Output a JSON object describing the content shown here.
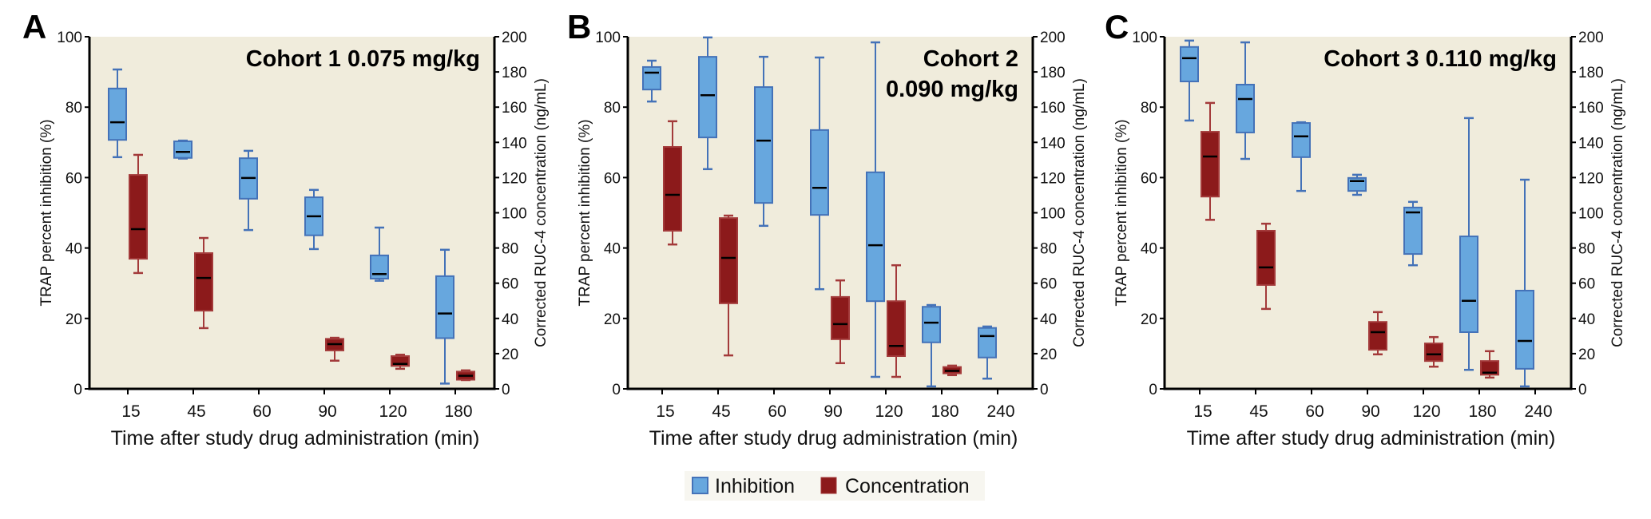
{
  "legend": {
    "items": [
      {
        "label": "Inhibition",
        "series": "inhibition"
      },
      {
        "label": "Concentration",
        "series": "concentration"
      }
    ]
  },
  "colors": {
    "inhibition_fill": "#67A7DE",
    "inhibition_stroke": "#4472B8",
    "concentration_fill": "#8C1A1B",
    "concentration_stroke": "#A33A3A",
    "median": "#000000",
    "plot_background": "#F0ECDC",
    "legend_background": "#F7F6F0"
  },
  "chart_data": [
    {
      "type": "box",
      "panel": "A",
      "title": "Cohort 1 0.075 mg/kg",
      "xlabel": "Time after study drug administration (min)",
      "ylabel": "TRAP percent inhibition (%)",
      "y2label": "Corrected RUC-4 concentration (ng/mL)",
      "ylim": [
        0,
        100
      ],
      "y2lim": [
        0,
        200
      ],
      "yticks": [
        0,
        20,
        40,
        60,
        80,
        100
      ],
      "y2ticks": [
        0,
        20,
        40,
        60,
        80,
        100,
        120,
        140,
        160,
        180,
        200
      ],
      "categories": [
        "15",
        "45",
        "60",
        "90",
        "120",
        "180"
      ],
      "series": [
        {
          "name": "Inhibition",
          "axis": "left",
          "boxes": [
            {
              "category": "15",
              "min": 65.8,
              "q1": 70.7,
              "median": 75.7,
              "q3": 85.3,
              "max": 90.7
            },
            {
              "category": "45",
              "min": 65.4,
              "q1": 65.6,
              "median": 67.3,
              "q3": 70.3,
              "max": 70.5
            },
            {
              "category": "60",
              "min": 45.1,
              "q1": 54.0,
              "median": 59.9,
              "q3": 65.5,
              "max": 67.6
            },
            {
              "category": "90",
              "min": 39.7,
              "q1": 43.6,
              "median": 49.0,
              "q3": 54.4,
              "max": 56.5
            },
            {
              "category": "120",
              "min": 30.7,
              "q1": 31.3,
              "median": 32.6,
              "q3": 37.9,
              "max": 45.8
            },
            {
              "category": "180",
              "min": 1.5,
              "q1": 14.4,
              "median": 21.4,
              "q3": 32.0,
              "max": 39.5
            }
          ]
        },
        {
          "name": "Concentration",
          "axis": "right",
          "boxes": [
            {
              "category": "15",
              "min": 65.8,
              "q1": 73.9,
              "median": 90.7,
              "q3": 121.5,
              "max": 132.9
            },
            {
              "category": "45",
              "min": 34.5,
              "q1": 44.4,
              "median": 63.0,
              "q3": 77.1,
              "max": 85.7
            },
            {
              "category": "90",
              "min": 16.0,
              "q1": 21.8,
              "median": 25.4,
              "q3": 28.4,
              "max": 29.0
            },
            {
              "category": "120",
              "min": 11.4,
              "q1": 13.0,
              "median": 14.2,
              "q3": 18.6,
              "max": 19.4
            },
            {
              "category": "180",
              "min": 5.0,
              "q1": 5.2,
              "median": 7.4,
              "q3": 9.8,
              "max": 10.5
            }
          ]
        }
      ]
    },
    {
      "type": "box",
      "panel": "B",
      "title": "Cohort 2\n0.090 mg/kg",
      "title_lines": [
        "Cohort 2",
        "0.090 mg/kg"
      ],
      "xlabel": "Time after study drug administration (min)",
      "ylabel": "TRAP percent inhibition (%)",
      "y2label": "Corrected RUC-4 concentration (ng/mL)",
      "ylim": [
        0,
        100
      ],
      "y2lim": [
        0,
        200
      ],
      "yticks": [
        0,
        20,
        40,
        60,
        80,
        100
      ],
      "y2ticks": [
        0,
        20,
        40,
        60,
        80,
        100,
        120,
        140,
        160,
        180,
        200
      ],
      "categories": [
        "15",
        "45",
        "60",
        "90",
        "120",
        "180",
        "240"
      ],
      "series": [
        {
          "name": "Inhibition",
          "axis": "left",
          "boxes": [
            {
              "category": "15",
              "min": 81.6,
              "q1": 85.0,
              "median": 89.8,
              "q3": 91.4,
              "max": 93.2
            },
            {
              "category": "45",
              "min": 62.4,
              "q1": 71.4,
              "median": 83.4,
              "q3": 94.3,
              "max": 99.8
            },
            {
              "category": "60",
              "min": 46.3,
              "q1": 52.8,
              "median": 70.5,
              "q3": 85.7,
              "max": 94.3
            },
            {
              "category": "90",
              "min": 28.3,
              "q1": 49.4,
              "median": 57.1,
              "q3": 73.5,
              "max": 94.1
            },
            {
              "category": "120",
              "min": 3.4,
              "q1": 24.9,
              "median": 40.8,
              "q3": 61.5,
              "max": 98.4
            },
            {
              "category": "180",
              "min": 0.7,
              "q1": 13.2,
              "median": 18.8,
              "q3": 23.3,
              "max": 23.8
            },
            {
              "category": "240",
              "min": 2.9,
              "q1": 8.9,
              "median": 15.0,
              "q3": 17.3,
              "max": 17.7
            }
          ]
        },
        {
          "name": "Concentration",
          "axis": "right",
          "boxes": [
            {
              "category": "15",
              "min": 82.0,
              "q1": 89.8,
              "median": 110.2,
              "q3": 137.4,
              "max": 152.0
            },
            {
              "category": "45",
              "min": 19.0,
              "q1": 48.6,
              "median": 74.4,
              "q3": 97.0,
              "max": 98.4
            },
            {
              "category": "90",
              "min": 14.6,
              "q1": 28.2,
              "median": 36.8,
              "q3": 52.2,
              "max": 61.6
            },
            {
              "category": "120",
              "min": 6.8,
              "q1": 18.6,
              "median": 24.4,
              "q3": 49.8,
              "max": 70.2
            },
            {
              "category": "180",
              "min": 7.8,
              "q1": 8.8,
              "median": 10.2,
              "q3": 12.4,
              "max": 13.2
            }
          ]
        }
      ]
    },
    {
      "type": "box",
      "panel": "C",
      "title": "Cohort 3 0.110 mg/kg",
      "xlabel": "Time after study drug administration (min)",
      "ylabel": "TRAP percent inhibition (%)",
      "y2label": "Corrected RUC-4 concentration (ng/mL)",
      "ylim": [
        0,
        100
      ],
      "y2lim": [
        0,
        200
      ],
      "yticks": [
        0,
        20,
        40,
        60,
        80,
        100
      ],
      "y2ticks": [
        0,
        20,
        40,
        60,
        80,
        100,
        120,
        140,
        160,
        180,
        200
      ],
      "categories": [
        "15",
        "45",
        "60",
        "90",
        "120",
        "180",
        "240"
      ],
      "series": [
        {
          "name": "Inhibition",
          "axis": "left",
          "boxes": [
            {
              "category": "15",
              "min": 76.2,
              "q1": 87.3,
              "median": 93.9,
              "q3": 97.1,
              "max": 98.9
            },
            {
              "category": "45",
              "min": 65.3,
              "q1": 72.8,
              "median": 82.3,
              "q3": 86.4,
              "max": 98.4
            },
            {
              "category": "60",
              "min": 56.2,
              "q1": 65.8,
              "median": 71.7,
              "q3": 75.5,
              "max": 75.7
            },
            {
              "category": "90",
              "min": 55.1,
              "q1": 56.2,
              "median": 59.0,
              "q3": 59.9,
              "max": 60.8
            },
            {
              "category": "120",
              "min": 35.1,
              "q1": 38.3,
              "median": 50.1,
              "q3": 51.5,
              "max": 53.1
            },
            {
              "category": "180",
              "min": 5.4,
              "q1": 16.1,
              "median": 25.0,
              "q3": 43.3,
              "max": 76.9
            },
            {
              "category": "240",
              "min": 0.7,
              "q1": 5.7,
              "median": 13.6,
              "q3": 27.9,
              "max": 59.4
            }
          ]
        },
        {
          "name": "Concentration",
          "axis": "right",
          "boxes": [
            {
              "category": "15",
              "min": 96.0,
              "q1": 109.2,
              "median": 132.0,
              "q3": 146.0,
              "max": 162.4
            },
            {
              "category": "45",
              "min": 45.4,
              "q1": 59.0,
              "median": 69.0,
              "q3": 89.8,
              "max": 93.8
            },
            {
              "category": "90",
              "min": 19.6,
              "q1": 22.2,
              "median": 32.2,
              "q3": 38.0,
              "max": 43.6
            },
            {
              "category": "120",
              "min": 12.6,
              "q1": 15.8,
              "median": 19.6,
              "q3": 25.8,
              "max": 29.4
            },
            {
              "category": "180",
              "min": 6.4,
              "q1": 8.0,
              "median": 9.2,
              "q3": 15.8,
              "max": 21.4
            }
          ]
        }
      ]
    }
  ]
}
